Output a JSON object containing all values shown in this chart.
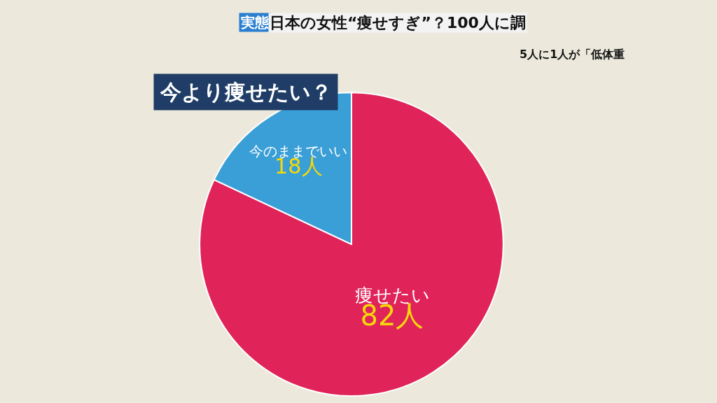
{
  "chart_data": {
    "type": "pie",
    "title": "今より痩せたい？",
    "categories": [
      "痩せたい",
      "今のままでいい"
    ],
    "values": [
      82,
      18
    ],
    "colors": [
      "#e0245a",
      "#3a9fd6"
    ],
    "value_labels": [
      "82人",
      "18人"
    ],
    "legend": false,
    "annotations": [
      "実態",
      "日本の女性“痩せすぎ”？100人に調",
      "5人に1人が「低体重"
    ]
  }
}
